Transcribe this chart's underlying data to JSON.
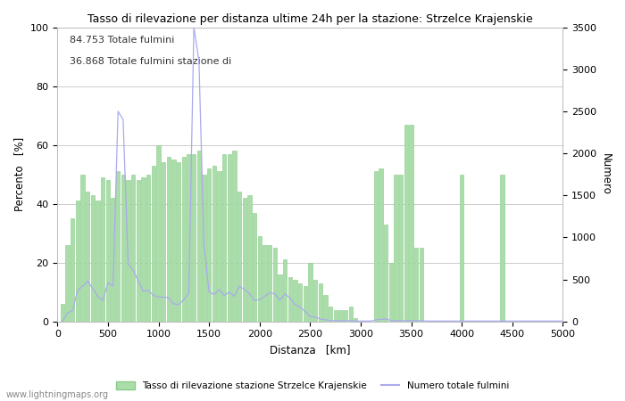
{
  "title": "Tasso di rilevazione per distanza ultime 24h per la stazione: Strzelce Krajenskie",
  "xlabel": "Distanza   [km]",
  "ylabel_left": "Percento   [%]",
  "ylabel_right": "Numero",
  "annotation_line1": "84.753 Totale fulmini",
  "annotation_line2": "36.868 Totale fulmini stazione di",
  "legend_green": "Tasso di rilevazione stazione Strzelce Krajenskie",
  "legend_blue": "Numero totale fulmini",
  "watermark": "www.lightningmaps.org",
  "xlim": [
    0,
    5000
  ],
  "ylim_left": [
    0,
    100
  ],
  "ylim_right": [
    0,
    3500
  ],
  "yticks_left": [
    0,
    20,
    40,
    60,
    80,
    100
  ],
  "yticks_right": [
    0,
    500,
    1000,
    1500,
    2000,
    2500,
    3000,
    3500
  ],
  "xticks": [
    0,
    500,
    1000,
    1500,
    2000,
    2500,
    3000,
    3500,
    4000,
    4500,
    5000
  ],
  "bar_color": "#aaddaa",
  "bar_edge_color": "#88cc88",
  "line_color": "#aaaaee",
  "background_color": "#ffffff",
  "grid_color": "#cccccc",
  "distances": [
    50,
    100,
    150,
    200,
    250,
    300,
    350,
    400,
    450,
    500,
    550,
    600,
    650,
    700,
    750,
    800,
    850,
    900,
    950,
    1000,
    1050,
    1100,
    1150,
    1200,
    1250,
    1300,
    1350,
    1400,
    1450,
    1500,
    1550,
    1600,
    1650,
    1700,
    1750,
    1800,
    1850,
    1900,
    1950,
    2000,
    2050,
    2100,
    2150,
    2200,
    2250,
    2300,
    2350,
    2400,
    2450,
    2500,
    2550,
    2600,
    2650,
    2700,
    2750,
    2800,
    2850,
    2900,
    2950,
    3000,
    3050,
    3100,
    3150,
    3200,
    3250,
    3300,
    3350,
    3400,
    3450,
    3500,
    3550,
    3600,
    3650,
    3700,
    3750,
    3800,
    3850,
    3900,
    3950,
    4000,
    4050,
    4100,
    4150,
    4200,
    4250,
    4300,
    4350,
    4400,
    4450,
    4500,
    4550,
    4600,
    4650,
    4700,
    4750,
    4800,
    4850,
    4900,
    4950,
    5000
  ],
  "green_values": [
    6,
    26,
    35,
    41,
    50,
    44,
    43,
    41,
    49,
    48,
    42,
    51,
    50,
    48,
    50,
    48,
    49,
    50,
    53,
    60,
    54,
    56,
    55,
    54,
    56,
    57,
    57,
    58,
    50,
    52,
    53,
    51,
    57,
    57,
    58,
    44,
    42,
    43,
    37,
    29,
    26,
    26,
    25,
    16,
    21,
    15,
    14,
    13,
    12,
    20,
    14,
    13,
    9,
    5,
    4,
    4,
    4,
    5,
    1,
    0,
    0,
    0,
    51,
    52,
    33,
    20,
    50,
    50,
    67,
    67,
    25,
    25,
    0,
    0,
    0,
    0,
    0,
    0,
    0,
    50,
    0,
    0,
    0,
    0,
    0,
    0,
    0,
    50,
    0,
    0,
    0,
    0,
    0,
    0,
    0,
    0,
    0,
    0,
    0,
    0
  ],
  "blue_values": [
    3,
    100,
    130,
    370,
    420,
    480,
    390,
    300,
    250,
    460,
    420,
    2500,
    2400,
    680,
    610,
    480,
    360,
    370,
    310,
    290,
    290,
    280,
    210,
    200,
    260,
    340,
    3500,
    3100,
    900,
    350,
    320,
    380,
    310,
    350,
    300,
    420,
    380,
    330,
    250,
    260,
    300,
    340,
    330,
    250,
    330,
    280,
    200,
    170,
    120,
    60,
    50,
    30,
    20,
    10,
    10,
    10,
    10,
    10,
    5,
    5,
    5,
    5,
    20,
    25,
    30,
    10,
    10,
    10,
    10,
    10,
    10,
    10,
    5,
    5,
    5,
    5,
    5,
    5,
    5,
    5,
    5,
    5,
    5,
    5,
    5,
    5,
    5,
    5,
    5,
    5,
    5,
    5,
    5,
    5,
    5,
    5,
    5,
    5,
    5,
    5
  ]
}
